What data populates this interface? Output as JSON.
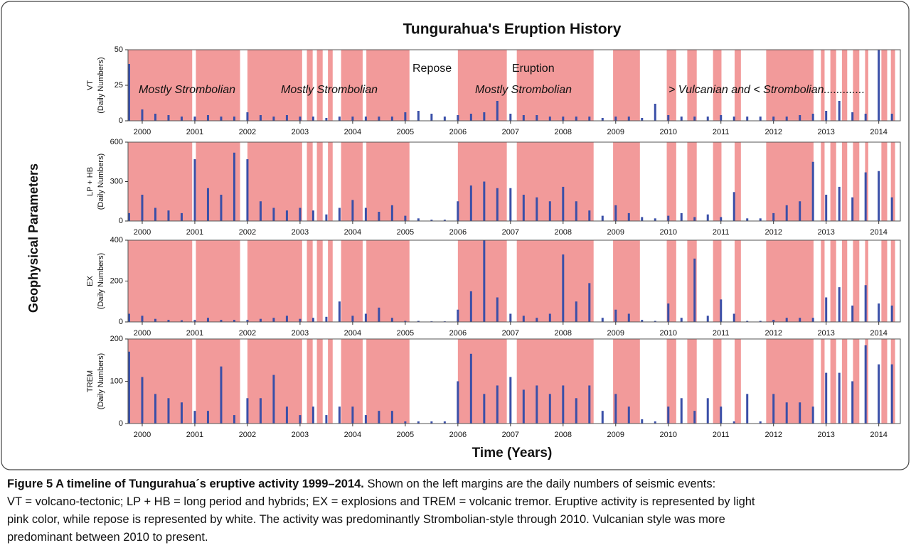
{
  "title": "Tungurahua's Eruption History",
  "y_group_label": "Geophysical Parameters",
  "x_label": "Time (Years)",
  "eruption_color": "#f29a9a",
  "bar_color": "#3a4fa8",
  "eruption_periods": [
    [
      1999.73,
      2000.95
    ],
    [
      2001.02,
      2001.86
    ],
    [
      2002.0,
      2003.04
    ],
    [
      2003.13,
      2003.24
    ],
    [
      2003.32,
      2003.43
    ],
    [
      2003.53,
      2003.62
    ],
    [
      2003.78,
      2004.19
    ],
    [
      2004.26,
      2005.08
    ],
    [
      2006.0,
      2006.93
    ],
    [
      2007.12,
      2008.58
    ],
    [
      2008.95,
      2009.46
    ],
    [
      2009.97,
      2010.15
    ],
    [
      2010.36,
      2010.54
    ],
    [
      2010.85,
      2011.01
    ],
    [
      2011.26,
      2011.38
    ],
    [
      2011.86,
      2012.76
    ],
    [
      2012.9,
      2012.97
    ],
    [
      2013.08,
      2013.19
    ],
    [
      2013.3,
      2013.4
    ],
    [
      2013.51,
      2013.63
    ],
    [
      2013.74,
      2013.8
    ],
    [
      2014.05,
      2014.16
    ],
    [
      2014.23,
      2014.31
    ]
  ],
  "chart_data": [
    {
      "type": "bar",
      "ylabel": "VT",
      "ylabel2": "(Daily Numbers)",
      "annotations": [
        "Mostly Strombolian",
        "Mostly Strombolian",
        "Repose",
        "Eruption",
        "Mostly Strombolian",
        "> Vulcanian and < Strombolian............."
      ],
      "xlim": [
        1999.73,
        2014.41
      ],
      "xticks": [
        2000,
        2001,
        2002,
        2003,
        2004,
        2005,
        2006,
        2007,
        2008,
        2009,
        2010,
        2011,
        2012,
        2013,
        2014
      ],
      "ylim": [
        0,
        50
      ],
      "yticks": [
        0,
        25,
        50
      ],
      "x": [
        1999.75,
        2000,
        2000.25,
        2000.5,
        2000.75,
        2001,
        2001.25,
        2001.5,
        2001.75,
        2002,
        2002.25,
        2002.5,
        2002.75,
        2003,
        2003.25,
        2003.5,
        2003.75,
        2004,
        2004.25,
        2004.5,
        2004.75,
        2005,
        2005.25,
        2005.5,
        2005.75,
        2006,
        2006.25,
        2006.5,
        2006.75,
        2007,
        2007.25,
        2007.5,
        2007.75,
        2008,
        2008.25,
        2008.5,
        2008.75,
        2009,
        2009.25,
        2009.5,
        2009.75,
        2010,
        2010.25,
        2010.5,
        2010.75,
        2011,
        2011.25,
        2011.5,
        2011.75,
        2012,
        2012.25,
        2012.5,
        2012.75,
        2013,
        2013.25,
        2013.5,
        2013.75,
        2014,
        2014.25
      ],
      "values": [
        40,
        8,
        5,
        4,
        3,
        3,
        4,
        3,
        3,
        6,
        4,
        3,
        4,
        3,
        3,
        2,
        3,
        3,
        3,
        3,
        3,
        6,
        7,
        5,
        3,
        4,
        5,
        6,
        14,
        5,
        4,
        4,
        3,
        3,
        3,
        3,
        2,
        3,
        3,
        2,
        12,
        4,
        3,
        3,
        3,
        4,
        3,
        3,
        3,
        3,
        3,
        4,
        5,
        7,
        14,
        6,
        5,
        50,
        5
      ]
    },
    {
      "type": "bar",
      "ylabel": "LP + HB",
      "ylabel2": "(Daily Numbers)",
      "xlim": [
        1999.73,
        2014.41
      ],
      "xticks": [
        2000,
        2001,
        2002,
        2003,
        2004,
        2005,
        2006,
        2007,
        2008,
        2009,
        2010,
        2011,
        2012,
        2013,
        2014
      ],
      "ylim": [
        0,
        600
      ],
      "yticks": [
        0,
        300,
        600
      ],
      "x": [
        1999.75,
        2000,
        2000.25,
        2000.5,
        2000.75,
        2001,
        2001.25,
        2001.5,
        2001.75,
        2002,
        2002.25,
        2002.5,
        2002.75,
        2003,
        2003.25,
        2003.5,
        2003.75,
        2004,
        2004.25,
        2004.5,
        2004.75,
        2005,
        2005.25,
        2005.5,
        2005.75,
        2006,
        2006.25,
        2006.5,
        2006.75,
        2007,
        2007.25,
        2007.5,
        2007.75,
        2008,
        2008.25,
        2008.5,
        2008.75,
        2009,
        2009.25,
        2009.5,
        2009.75,
        2010,
        2010.25,
        2010.5,
        2010.75,
        2011,
        2011.25,
        2011.5,
        2011.75,
        2012,
        2012.25,
        2012.5,
        2012.75,
        2013,
        2013.25,
        2013.5,
        2013.75,
        2014,
        2014.25
      ],
      "values": [
        60,
        200,
        100,
        80,
        60,
        470,
        250,
        200,
        520,
        470,
        150,
        100,
        80,
        100,
        80,
        50,
        100,
        160,
        100,
        70,
        120,
        40,
        20,
        10,
        10,
        150,
        270,
        300,
        250,
        250,
        200,
        180,
        150,
        260,
        150,
        80,
        40,
        120,
        60,
        30,
        20,
        40,
        60,
        30,
        50,
        30,
        220,
        20,
        20,
        60,
        120,
        150,
        450,
        200,
        260,
        180,
        370,
        380,
        180
      ]
    },
    {
      "type": "bar",
      "ylabel": "EX",
      "ylabel2": "(Daily Numbers)",
      "xlim": [
        1999.73,
        2014.41
      ],
      "xticks": [
        2000,
        2001,
        2002,
        2003,
        2004,
        2005,
        2006,
        2007,
        2008,
        2009,
        2010,
        2011,
        2012,
        2013,
        2014
      ],
      "ylim": [
        0,
        400
      ],
      "yticks": [
        0,
        200,
        400
      ],
      "x": [
        1999.75,
        2000,
        2000.25,
        2000.5,
        2000.75,
        2001,
        2001.25,
        2001.5,
        2001.75,
        2002,
        2002.25,
        2002.5,
        2002.75,
        2003,
        2003.25,
        2003.5,
        2003.75,
        2004,
        2004.25,
        2004.5,
        2004.75,
        2005,
        2005.25,
        2005.5,
        2005.75,
        2006,
        2006.25,
        2006.5,
        2006.75,
        2007,
        2007.25,
        2007.5,
        2007.75,
        2008,
        2008.25,
        2008.5,
        2008.75,
        2009,
        2009.25,
        2009.5,
        2009.75,
        2010,
        2010.25,
        2010.5,
        2010.75,
        2011,
        2011.25,
        2011.5,
        2011.75,
        2012,
        2012.25,
        2012.5,
        2012.75,
        2013,
        2013.25,
        2013.5,
        2013.75,
        2014,
        2014.25
      ],
      "values": [
        40,
        30,
        15,
        10,
        8,
        10,
        20,
        10,
        10,
        10,
        15,
        20,
        30,
        15,
        20,
        25,
        100,
        30,
        40,
        70,
        20,
        5,
        5,
        3,
        3,
        60,
        150,
        400,
        120,
        40,
        30,
        20,
        40,
        330,
        100,
        190,
        20,
        60,
        40,
        10,
        5,
        90,
        20,
        310,
        30,
        110,
        40,
        5,
        5,
        10,
        20,
        20,
        20,
        120,
        170,
        80,
        180,
        90,
        80
      ]
    },
    {
      "type": "bar",
      "ylabel": "TREM",
      "ylabel2": "(Daily Numbers)",
      "xlim": [
        1999.73,
        2014.41
      ],
      "xticks": [
        2000,
        2001,
        2002,
        2003,
        2004,
        2005,
        2006,
        2007,
        2008,
        2009,
        2010,
        2011,
        2012,
        2013,
        2014
      ],
      "ylim": [
        0,
        200
      ],
      "yticks": [
        0,
        100,
        200
      ],
      "x": [
        1999.75,
        2000,
        2000.25,
        2000.5,
        2000.75,
        2001,
        2001.25,
        2001.5,
        2001.75,
        2002,
        2002.25,
        2002.5,
        2002.75,
        2003,
        2003.25,
        2003.5,
        2003.75,
        2004,
        2004.25,
        2004.5,
        2004.75,
        2005,
        2005.25,
        2005.5,
        2005.75,
        2006,
        2006.25,
        2006.5,
        2006.75,
        2007,
        2007.25,
        2007.5,
        2007.75,
        2008,
        2008.25,
        2008.5,
        2008.75,
        2009,
        2009.25,
        2009.5,
        2009.75,
        2010,
        2010.25,
        2010.5,
        2010.75,
        2011,
        2011.25,
        2011.5,
        2011.75,
        2012,
        2012.25,
        2012.5,
        2012.75,
        2013,
        2013.25,
        2013.5,
        2013.75,
        2014,
        2014.25
      ],
      "values": [
        170,
        110,
        70,
        60,
        50,
        30,
        30,
        135,
        20,
        60,
        60,
        115,
        40,
        20,
        40,
        20,
        40,
        40,
        20,
        30,
        30,
        5,
        5,
        5,
        5,
        100,
        165,
        70,
        90,
        110,
        80,
        90,
        70,
        90,
        60,
        90,
        30,
        70,
        40,
        10,
        5,
        40,
        60,
        30,
        60,
        40,
        5,
        70,
        5,
        70,
        50,
        50,
        40,
        120,
        120,
        100,
        185,
        140,
        140
      ]
    }
  ],
  "caption": {
    "title": "Figure 5 A timeline of Tungurahua´s eruptive activity 1999–2014.",
    "lines": [
      " Shown on the left margins are the daily numbers of seismic events:",
      "VT = volcano-tectonic; LP + HB = long period and hybrids; EX = explosions and TREM = volcanic tremor. Eruptive activity is represented by light",
      "pink color, while repose is represented by white. The activity was predominantly Strombolian-style through 2010. Vulcanian style was more",
      "predominant between 2010 to present."
    ]
  }
}
